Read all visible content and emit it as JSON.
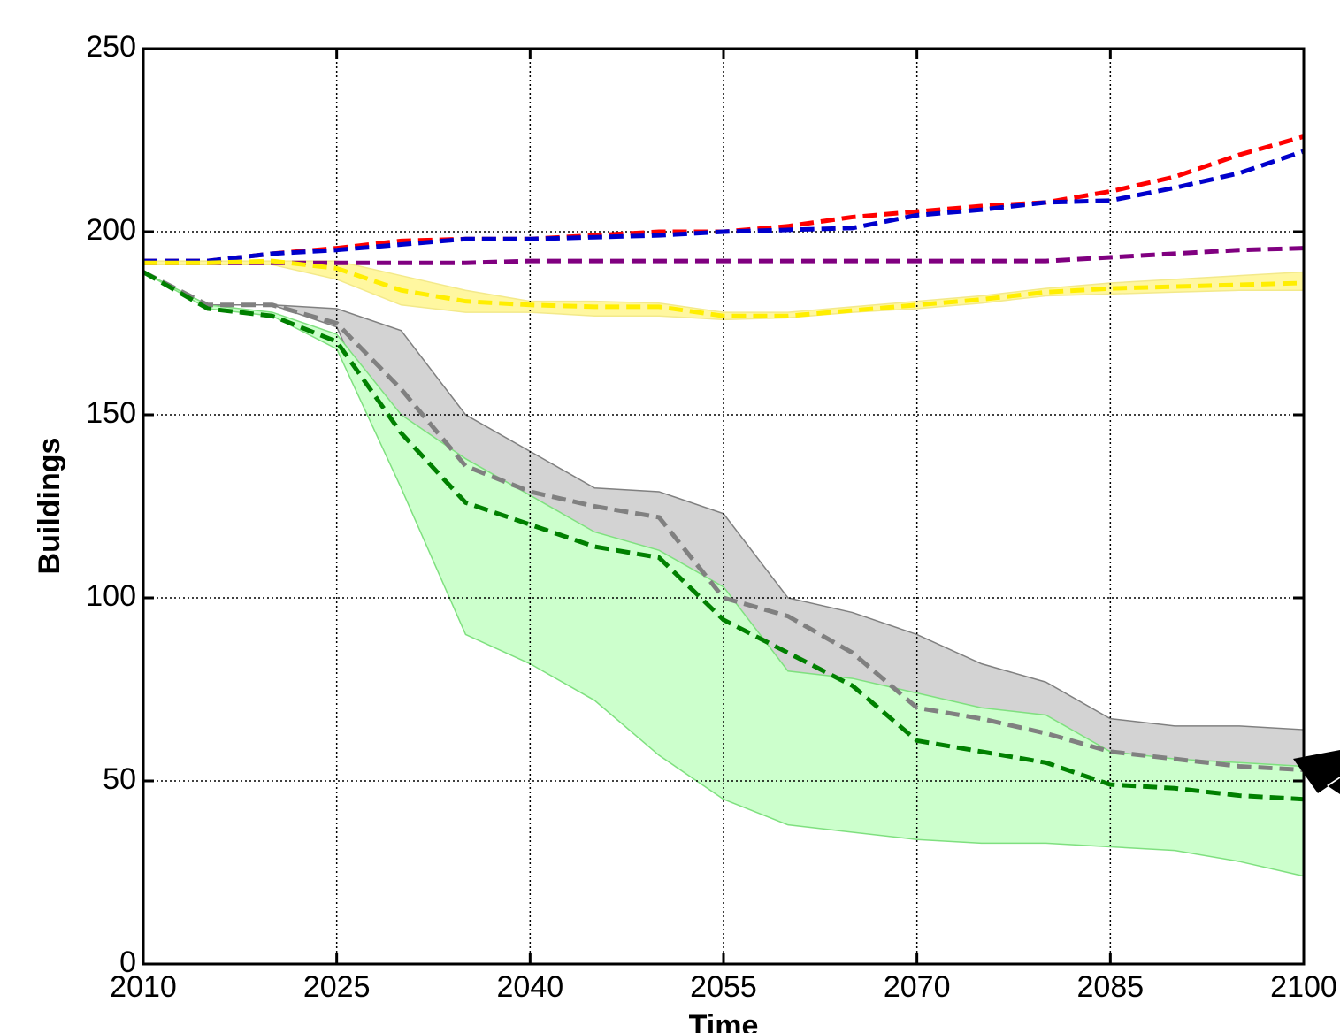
{
  "chart_data": {
    "type": "line",
    "xlabel": "Time",
    "ylabel": "Buildings",
    "x": [
      2010,
      2015,
      2020,
      2025,
      2030,
      2035,
      2040,
      2045,
      2050,
      2055,
      2060,
      2065,
      2070,
      2075,
      2080,
      2085,
      2090,
      2095,
      2100
    ],
    "xlim": [
      2010,
      2100
    ],
    "xticks": [
      2010,
      2025,
      2040,
      2055,
      2070,
      2085,
      2100
    ],
    "ylim": [
      0,
      250
    ],
    "yticks": [
      0,
      50,
      100,
      150,
      200,
      250
    ],
    "grid": true,
    "bands": [
      {
        "color": "#fff7a0",
        "edge": "#f3e98a",
        "lower": [
          191,
          191,
          191,
          187,
          180,
          178,
          178,
          177,
          177,
          176,
          176.5,
          178,
          179,
          180.5,
          182.5,
          183,
          183.5,
          184,
          184
        ],
        "upper": [
          192,
          192,
          192,
          192,
          188,
          184,
          181,
          181,
          180.5,
          178,
          178,
          179.5,
          181,
          182.5,
          184.5,
          186,
          187,
          188,
          189
        ]
      },
      {
        "color": "#d3d3d3",
        "edge": "#808080",
        "lower": [
          189,
          180,
          180,
          174,
          135,
          100,
          97,
          80,
          60,
          50,
          44,
          41,
          38,
          37,
          36,
          36,
          35,
          33,
          28
        ],
        "upper": [
          189,
          180,
          180,
          179,
          173,
          150,
          140,
          130,
          129,
          123,
          100,
          96,
          90,
          82,
          77,
          67,
          65,
          65,
          64
        ]
      },
      {
        "color": "#ccffcc",
        "edge": "#7fe07f",
        "lower": [
          189,
          179,
          177,
          168,
          130,
          90,
          82,
          72,
          57,
          45,
          38,
          36,
          34,
          33,
          33,
          32,
          31,
          28,
          24
        ],
        "upper": [
          189,
          180,
          178,
          172,
          150,
          138,
          128,
          118,
          113,
          103,
          80,
          78,
          74,
          70,
          68,
          58,
          56,
          55,
          54
        ]
      }
    ],
    "series": [
      {
        "color": "#ff0000",
        "values": [
          192,
          192,
          194,
          195.5,
          197.5,
          198,
          198,
          199,
          200,
          200,
          201.5,
          204,
          205.5,
          207,
          208,
          211,
          215,
          221,
          226
        ]
      },
      {
        "color": "#0000cc",
        "values": [
          192,
          192,
          194,
          195,
          196.5,
          198,
          198,
          198.5,
          199,
          200,
          200.5,
          201,
          204.5,
          206,
          208,
          208.5,
          212,
          216,
          222
        ]
      },
      {
        "color": "#800080",
        "values": [
          191.5,
          191.5,
          191.5,
          191.5,
          191.5,
          191.5,
          192,
          192,
          192,
          192,
          192,
          192,
          192,
          192,
          192,
          193,
          194,
          195,
          195.5
        ]
      },
      {
        "color": "#ffee00",
        "values": [
          191.5,
          191.5,
          192,
          190,
          184,
          181,
          180,
          179.5,
          179.5,
          177,
          177,
          178.5,
          180,
          181.5,
          183.5,
          184.5,
          185,
          185.5,
          186
        ]
      },
      {
        "color": "#808080",
        "values": [
          189,
          180,
          180,
          175,
          157,
          136,
          129,
          125,
          122,
          100,
          95,
          85,
          70,
          67,
          63,
          58,
          56,
          54,
          53
        ]
      },
      {
        "color": "#008000",
        "values": [
          189,
          179,
          177,
          170,
          145,
          126,
          120,
          114,
          111,
          94,
          85,
          76,
          61,
          58,
          55,
          49,
          48,
          46,
          45
        ]
      }
    ]
  }
}
